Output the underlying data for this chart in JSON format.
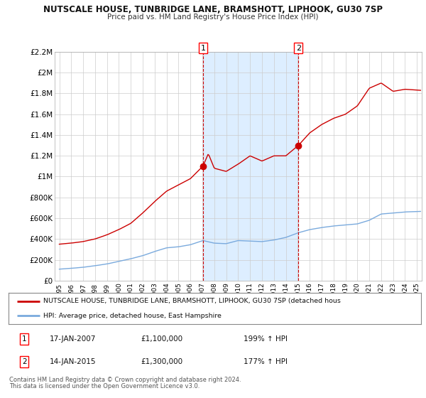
{
  "title": "NUTSCALE HOUSE, TUNBRIDGE LANE, BRAMSHOTT, LIPHOOK, GU30 7SP",
  "subtitle": "Price paid vs. HM Land Registry's House Price Index (HPI)",
  "red_label": "NUTSCALE HOUSE, TUNBRIDGE LANE, BRAMSHOTT, LIPHOOK, GU30 7SP (detached hous",
  "blue_label": "HPI: Average price, detached house, East Hampshire",
  "annotation1_date": "17-JAN-2007",
  "annotation1_price": "£1,100,000",
  "annotation1_hpi": "199% ↑ HPI",
  "annotation2_date": "14-JAN-2015",
  "annotation2_price": "£1,300,000",
  "annotation2_hpi": "177% ↑ HPI",
  "footnote1": "Contains HM Land Registry data © Crown copyright and database right 2024.",
  "footnote2": "This data is licensed under the Open Government Licence v3.0.",
  "ylim": [
    0,
    2200000
  ],
  "yticks": [
    0,
    200000,
    400000,
    600000,
    800000,
    1000000,
    1200000,
    1400000,
    1600000,
    1800000,
    2000000,
    2200000
  ],
  "ytick_labels": [
    "£0",
    "£200K",
    "£400K",
    "£600K",
    "£800K",
    "£1M",
    "£1.2M",
    "£1.4M",
    "£1.6M",
    "£1.8M",
    "£2M",
    "£2.2M"
  ],
  "xlim_start": 1994.6,
  "xlim_end": 2025.4,
  "xticks": [
    1995,
    1996,
    1997,
    1998,
    1999,
    2000,
    2001,
    2002,
    2003,
    2004,
    2005,
    2006,
    2007,
    2008,
    2009,
    2010,
    2011,
    2012,
    2013,
    2014,
    2015,
    2016,
    2017,
    2018,
    2019,
    2020,
    2021,
    2022,
    2023,
    2024,
    2025
  ],
  "vline1_x": 2007.05,
  "vline2_x": 2015.05,
  "marker1_x": 2007.05,
  "marker1_y": 1100000,
  "marker2_x": 2015.05,
  "marker2_y": 1300000,
  "red_color": "#cc0000",
  "blue_color": "#7aaadd",
  "shading_color": "#ddeeff",
  "background_color": "#ffffff",
  "grid_color": "#cccccc"
}
